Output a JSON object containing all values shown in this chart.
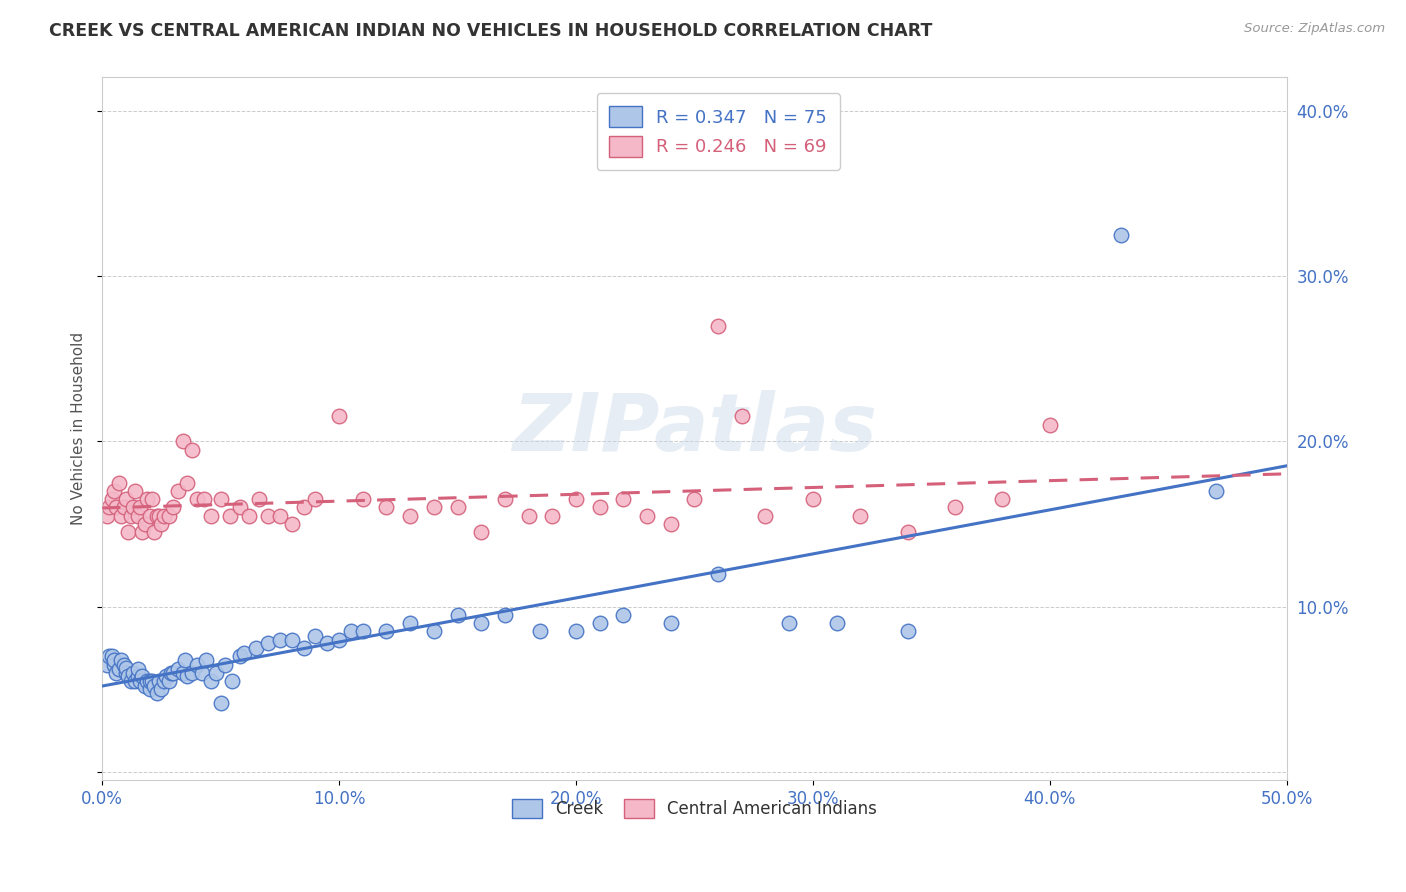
{
  "title": "CREEK VS CENTRAL AMERICAN INDIAN NO VEHICLES IN HOUSEHOLD CORRELATION CHART",
  "source": "Source: ZipAtlas.com",
  "ylabel": "No Vehicles in Household",
  "xlim": [
    0.0,
    0.5
  ],
  "ylim": [
    -0.005,
    0.42
  ],
  "xticks": [
    0.0,
    0.1,
    0.2,
    0.3,
    0.4,
    0.5
  ],
  "yticks": [
    0.0,
    0.1,
    0.2,
    0.3,
    0.4
  ],
  "xticklabels": [
    "0.0%",
    "10.0%",
    "20.0%",
    "30.0%",
    "40.0%",
    "50.0%"
  ],
  "yticklabels_right": [
    "",
    "10.0%",
    "20.0%",
    "30.0%",
    "40.0%"
  ],
  "creek_color": "#aec6e8",
  "creek_edge_color": "#4472c4",
  "central_color": "#f4b8c8",
  "central_edge_color": "#d4607a",
  "creek_R": 0.347,
  "creek_N": 75,
  "central_R": 0.246,
  "central_N": 69,
  "creek_line_color": "#4472c4",
  "central_line_color": "#d4607a",
  "watermark": "ZIPatlas",
  "creek_x": [
    0.002,
    0.003,
    0.004,
    0.005,
    0.005,
    0.006,
    0.007,
    0.008,
    0.009,
    0.01,
    0.01,
    0.011,
    0.012,
    0.013,
    0.014,
    0.015,
    0.015,
    0.016,
    0.017,
    0.018,
    0.019,
    0.02,
    0.02,
    0.021,
    0.022,
    0.023,
    0.024,
    0.025,
    0.026,
    0.027,
    0.028,
    0.029,
    0.03,
    0.032,
    0.034,
    0.035,
    0.036,
    0.038,
    0.04,
    0.042,
    0.044,
    0.046,
    0.048,
    0.05,
    0.052,
    0.055,
    0.058,
    0.06,
    0.065,
    0.07,
    0.075,
    0.08,
    0.085,
    0.09,
    0.095,
    0.1,
    0.105,
    0.11,
    0.12,
    0.13,
    0.14,
    0.15,
    0.16,
    0.17,
    0.185,
    0.2,
    0.21,
    0.22,
    0.24,
    0.26,
    0.29,
    0.31,
    0.34,
    0.43,
    0.47
  ],
  "creek_y": [
    0.065,
    0.07,
    0.07,
    0.065,
    0.068,
    0.06,
    0.062,
    0.068,
    0.065,
    0.06,
    0.063,
    0.058,
    0.055,
    0.06,
    0.055,
    0.058,
    0.062,
    0.055,
    0.058,
    0.052,
    0.055,
    0.05,
    0.055,
    0.055,
    0.052,
    0.048,
    0.055,
    0.05,
    0.055,
    0.058,
    0.055,
    0.06,
    0.06,
    0.062,
    0.06,
    0.068,
    0.058,
    0.06,
    0.065,
    0.06,
    0.068,
    0.055,
    0.06,
    0.042,
    0.065,
    0.055,
    0.07,
    0.072,
    0.075,
    0.078,
    0.08,
    0.08,
    0.075,
    0.082,
    0.078,
    0.08,
    0.085,
    0.085,
    0.085,
    0.09,
    0.085,
    0.095,
    0.09,
    0.095,
    0.085,
    0.085,
    0.09,
    0.095,
    0.09,
    0.12,
    0.09,
    0.09,
    0.085,
    0.325,
    0.17
  ],
  "central_x": [
    0.002,
    0.003,
    0.004,
    0.005,
    0.006,
    0.007,
    0.008,
    0.009,
    0.01,
    0.011,
    0.012,
    0.013,
    0.014,
    0.015,
    0.016,
    0.017,
    0.018,
    0.019,
    0.02,
    0.021,
    0.022,
    0.023,
    0.024,
    0.025,
    0.026,
    0.028,
    0.03,
    0.032,
    0.034,
    0.036,
    0.038,
    0.04,
    0.043,
    0.046,
    0.05,
    0.054,
    0.058,
    0.062,
    0.066,
    0.07,
    0.075,
    0.08,
    0.085,
    0.09,
    0.1,
    0.11,
    0.12,
    0.13,
    0.14,
    0.15,
    0.16,
    0.17,
    0.18,
    0.19,
    0.2,
    0.21,
    0.22,
    0.23,
    0.24,
    0.25,
    0.26,
    0.27,
    0.28,
    0.3,
    0.32,
    0.34,
    0.36,
    0.38,
    0.4
  ],
  "central_y": [
    0.155,
    0.16,
    0.165,
    0.17,
    0.16,
    0.175,
    0.155,
    0.16,
    0.165,
    0.145,
    0.155,
    0.16,
    0.17,
    0.155,
    0.16,
    0.145,
    0.15,
    0.165,
    0.155,
    0.165,
    0.145,
    0.155,
    0.155,
    0.15,
    0.155,
    0.155,
    0.16,
    0.17,
    0.2,
    0.175,
    0.195,
    0.165,
    0.165,
    0.155,
    0.165,
    0.155,
    0.16,
    0.155,
    0.165,
    0.155,
    0.155,
    0.15,
    0.16,
    0.165,
    0.215,
    0.165,
    0.16,
    0.155,
    0.16,
    0.16,
    0.145,
    0.165,
    0.155,
    0.155,
    0.165,
    0.16,
    0.165,
    0.155,
    0.15,
    0.165,
    0.27,
    0.215,
    0.155,
    0.165,
    0.155,
    0.145,
    0.16,
    0.165,
    0.21
  ]
}
